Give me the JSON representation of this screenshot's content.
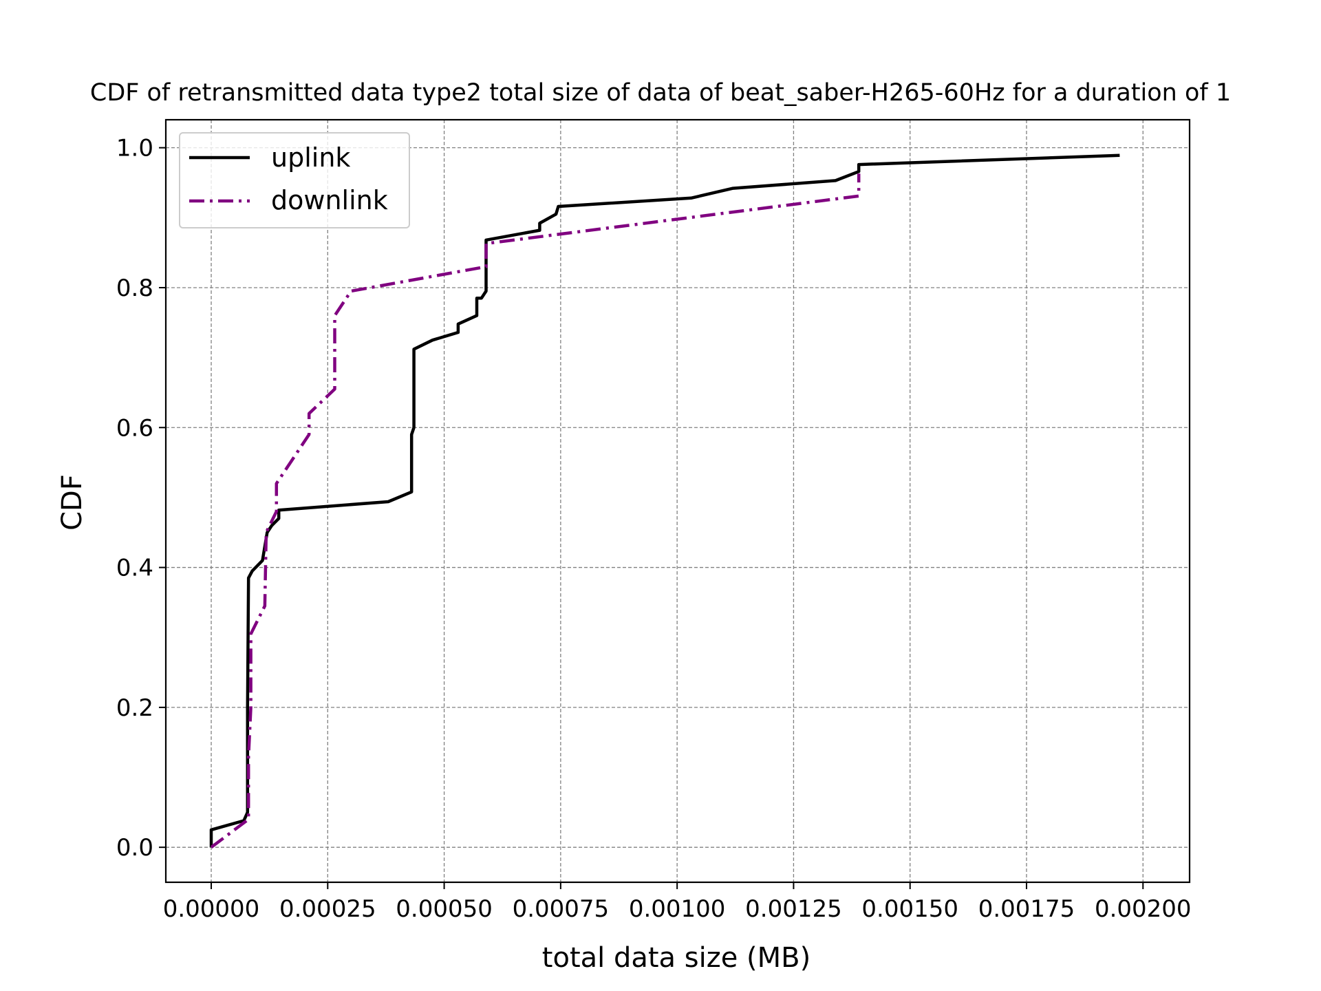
{
  "chart_data": {
    "type": "line",
    "title": "CDF of retransmitted data type2 total size of data of beat_saber-H265-60Hz for a duration of 1",
    "xlabel": "total data size (MB)",
    "ylabel": "CDF",
    "xlim": [
      -9.75e-05,
      0.0021
    ],
    "ylim": [
      -0.05,
      1.04
    ],
    "grid": true,
    "legend_position": "upper-left",
    "x_ticks": [
      0,
      0.00025,
      0.0005,
      0.00075,
      0.001,
      0.00125,
      0.0015,
      0.00175,
      0.002
    ],
    "x_tick_labels": [
      "0.00000",
      "0.00025",
      "0.00050",
      "0.00075",
      "0.00100",
      "0.00125",
      "0.00150",
      "0.00175",
      "0.00200"
    ],
    "y_ticks": [
      0,
      0.2,
      0.4,
      0.6,
      0.8,
      1.0
    ],
    "y_tick_labels": [
      "0.0",
      "0.2",
      "0.4",
      "0.6",
      "0.8",
      "1.0"
    ],
    "series": [
      {
        "name": "uplink",
        "color": "#000000",
        "style": "solid",
        "points": [
          [
            0.0,
            0.0
          ],
          [
            0.0,
            0.025
          ],
          [
            7e-05,
            0.038
          ],
          [
            7.8e-05,
            0.05
          ],
          [
            7.8e-05,
            0.2
          ],
          [
            8e-05,
            0.385
          ],
          [
            8.8e-05,
            0.395
          ],
          [
            0.00011,
            0.41
          ],
          [
            0.00012,
            0.45
          ],
          [
            0.00013,
            0.46
          ],
          [
            0.000145,
            0.47
          ],
          [
            0.000145,
            0.482
          ],
          [
            0.00038,
            0.494
          ],
          [
            0.00043,
            0.508
          ],
          [
            0.00043,
            0.59
          ],
          [
            0.000435,
            0.6
          ],
          [
            0.000435,
            0.712
          ],
          [
            0.000475,
            0.725
          ],
          [
            0.00053,
            0.736
          ],
          [
            0.00053,
            0.748
          ],
          [
            0.00057,
            0.76
          ],
          [
            0.00057,
            0.785
          ],
          [
            0.00058,
            0.785
          ],
          [
            0.00059,
            0.795
          ],
          [
            0.00059,
            0.868
          ],
          [
            0.000705,
            0.882
          ],
          [
            0.000705,
            0.892
          ],
          [
            0.00074,
            0.905
          ],
          [
            0.000745,
            0.916
          ],
          [
            0.00103,
            0.928
          ],
          [
            0.00112,
            0.942
          ],
          [
            0.00134,
            0.953
          ],
          [
            0.00139,
            0.966
          ],
          [
            0.00139,
            0.976
          ],
          [
            0.00195,
            0.989
          ]
        ]
      },
      {
        "name": "downlink",
        "color": "#800080",
        "style": "dashdot",
        "points": [
          [
            0.0,
            0.0
          ],
          [
            7e-05,
            0.035
          ],
          [
            8e-05,
            0.04
          ],
          [
            8e-05,
            0.13
          ],
          [
            8.5e-05,
            0.2
          ],
          [
            8.5e-05,
            0.305
          ],
          [
            0.000115,
            0.345
          ],
          [
            0.000118,
            0.45
          ],
          [
            0.00014,
            0.48
          ],
          [
            0.00014,
            0.52
          ],
          [
            0.00021,
            0.59
          ],
          [
            0.00021,
            0.62
          ],
          [
            0.000265,
            0.655
          ],
          [
            0.000265,
            0.76
          ],
          [
            0.0003,
            0.795
          ],
          [
            0.00059,
            0.83
          ],
          [
            0.00059,
            0.863
          ],
          [
            0.00139,
            0.931
          ],
          [
            0.00139,
            0.963
          ]
        ]
      }
    ]
  }
}
